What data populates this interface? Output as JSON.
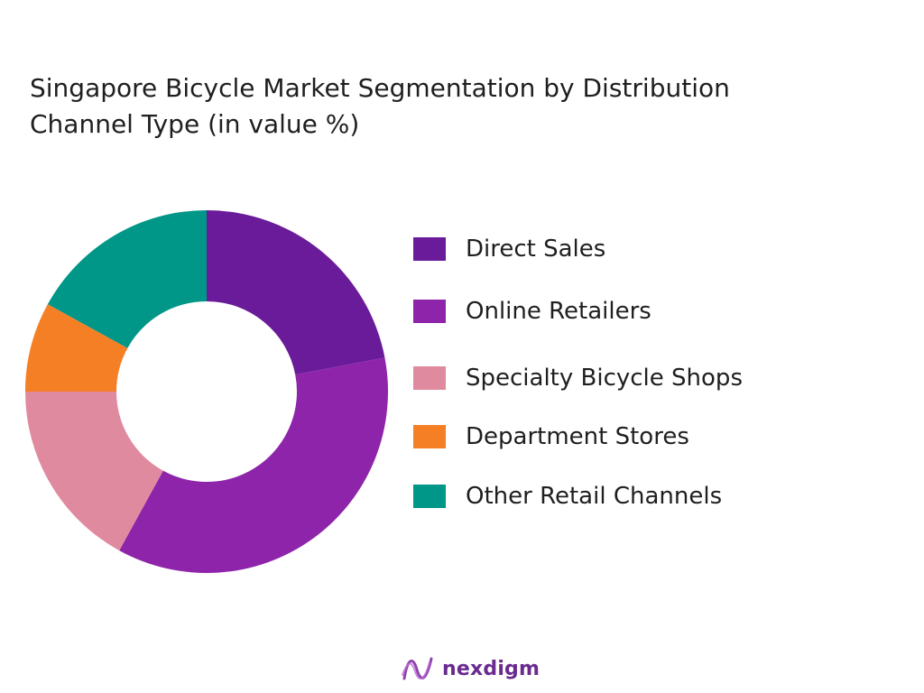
{
  "title": "Singapore Bicycle Market Segmentation by Distribution\nChannel  Type  (in value %)",
  "chart_data": {
    "type": "pie",
    "style": "donut",
    "title": "Singapore Bicycle Market Segmentation by Distribution Channel  Type  (in value %)",
    "categories": [
      "Direct Sales",
      "Online Retailers",
      "Specialty Bicycle Shops",
      "Department Stores",
      "Other Retail Channels"
    ],
    "values": [
      22,
      36,
      17,
      8,
      17
    ],
    "colors": [
      "#6a1b9a",
      "#8e24aa",
      "#e08a9f",
      "#f57f25",
      "#009688"
    ],
    "legend": "right"
  },
  "legend": {
    "items": [
      {
        "label": "Direct Sales",
        "color": "#6a1b9a"
      },
      {
        "label": "Online Retailers",
        "color": "#8e24aa"
      },
      {
        "label": "Specialty Bicycle Shops",
        "color": "#e08a9f"
      },
      {
        "label": "Department Stores",
        "color": "#f57f25"
      },
      {
        "label": "Other Retail Channels",
        "color": "#009688"
      }
    ]
  },
  "brand": {
    "name": "nexdigm",
    "icon": "nexdigm-logo-icon",
    "color": "#6a2a8f"
  }
}
